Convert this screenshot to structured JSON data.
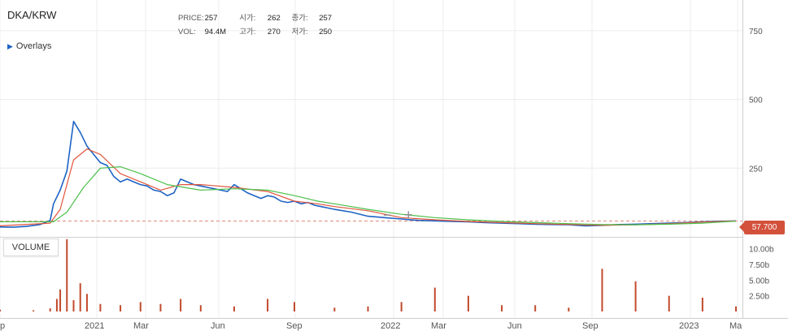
{
  "window": {
    "title": "DKA/KRW"
  },
  "overlays_toggle": {
    "label": "Overlays",
    "icon": "triangle-right-icon"
  },
  "ohlc": {
    "price_label": "PRICE:",
    "price": "257",
    "open_label": "시가:",
    "open": "262",
    "close_label": "종가:",
    "close": "257",
    "vol_label": "VOL:",
    "vol": "94.4M",
    "high_label": "고가:",
    "high": "270",
    "low_label": "저가:",
    "low": "250"
  },
  "volume_button": {
    "label": "VOLUME"
  },
  "current_price": "57.700",
  "zoom": {
    "out_label": "−",
    "in_label": "+"
  },
  "colors": {
    "candle": "#1e63c4",
    "ma_short": "#e0553c",
    "ma_long": "#4cc04c",
    "volume": "#c24a2c",
    "badge": "#d3503a",
    "dashed": "#e08a80"
  },
  "chart_data": [
    {
      "type": "line",
      "title": "DKA/KRW",
      "x_ticks": [
        "p",
        "2021",
        "Mar",
        "Jun",
        "Sep",
        "2022",
        "Mar",
        "Jun",
        "Sep",
        "2023",
        "Ma"
      ],
      "y_ticks": [
        "750",
        "500",
        "250"
      ],
      "ylim": [
        0,
        850
      ],
      "current_price": 57.7,
      "series": [
        {
          "style": "price",
          "x": [
            0,
            8,
            16,
            24,
            30,
            32,
            36,
            40,
            44,
            48,
            52,
            56,
            60,
            64,
            68,
            72,
            76,
            80,
            84,
            88,
            92,
            96,
            100,
            104,
            108,
            112,
            116,
            120,
            124,
            128,
            132,
            136,
            140,
            144,
            148,
            152,
            156,
            160,
            164,
            168,
            172,
            176,
            180,
            184,
            188,
            192,
            196,
            200,
            210,
            220,
            230,
            240,
            250,
            260,
            270,
            280,
            290,
            300,
            310,
            320,
            330,
            340,
            350,
            360,
            370,
            380,
            390,
            400,
            410,
            420,
            430,
            440
          ],
          "values": [
            36,
            35,
            38,
            45,
            60,
            120,
            170,
            240,
            420,
            380,
            330,
            300,
            270,
            260,
            220,
            200,
            210,
            200,
            190,
            185,
            170,
            165,
            150,
            160,
            210,
            200,
            190,
            185,
            180,
            175,
            170,
            165,
            190,
            175,
            160,
            150,
            140,
            150,
            145,
            130,
            125,
            130,
            120,
            125,
            115,
            110,
            105,
            100,
            90,
            75,
            70,
            65,
            60,
            58,
            56,
            55,
            52,
            50,
            48,
            46,
            45,
            44,
            40,
            42,
            45,
            46,
            48,
            50,
            52,
            55,
            57,
            57.7
          ]
        },
        {
          "style": "ma_short",
          "x": [
            0,
            30,
            36,
            44,
            52,
            60,
            72,
            84,
            96,
            108,
            120,
            140,
            160,
            176,
            190,
            200,
            220,
            240,
            260,
            280,
            300,
            320,
            340,
            360,
            380,
            400,
            420,
            440
          ],
          "values": [
            40,
            50,
            100,
            280,
            320,
            300,
            230,
            200,
            170,
            190,
            190,
            180,
            165,
            130,
            120,
            110,
            95,
            70,
            62,
            56,
            52,
            48,
            45,
            42,
            44,
            48,
            54,
            57.7
          ]
        },
        {
          "style": "ma_long",
          "x": [
            0,
            32,
            40,
            50,
            60,
            72,
            84,
            100,
            120,
            140,
            160,
            176,
            190,
            200,
            220,
            240,
            260,
            280,
            300,
            320,
            340,
            360,
            380,
            400,
            420,
            440
          ],
          "values": [
            55,
            55,
            90,
            180,
            250,
            255,
            230,
            190,
            170,
            175,
            170,
            150,
            130,
            120,
            100,
            82,
            70,
            62,
            56,
            52,
            48,
            45,
            44,
            46,
            50,
            57
          ]
        }
      ]
    },
    {
      "type": "bar",
      "title": "VOLUME",
      "y_ticks": [
        "10.00b",
        "7.50b",
        "5.00b",
        "2.50b"
      ],
      "ylim": [
        0,
        11.5
      ],
      "unit": "b",
      "x": [
        0,
        20,
        30,
        34,
        36,
        40,
        44,
        48,
        52,
        60,
        72,
        84,
        96,
        108,
        120,
        140,
        160,
        176,
        200,
        220,
        240,
        260,
        280,
        300,
        320,
        340,
        360,
        380,
        400,
        420,
        440
      ],
      "values": [
        0.3,
        0.2,
        0.5,
        2.0,
        3.5,
        11.5,
        1.8,
        4.5,
        2.8,
        1.2,
        1.0,
        1.5,
        1.2,
        2.0,
        1.0,
        0.8,
        2.0,
        1.5,
        0.6,
        0.8,
        1.5,
        3.8,
        2.5,
        1.0,
        1.0,
        0.6,
        6.8,
        4.8,
        2.5,
        2.2,
        0.8
      ]
    }
  ]
}
